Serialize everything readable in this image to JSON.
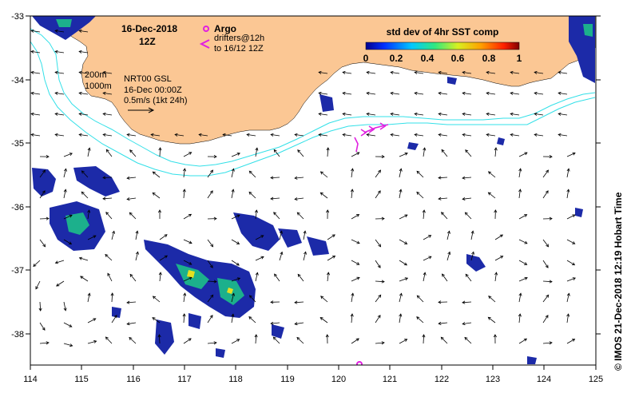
{
  "title": {
    "date": "16-Dec-2018",
    "time": "12Z"
  },
  "legend": {
    "argo_label": "Argo",
    "drifters_line1": "drifters@12h",
    "drifters_line2": "to 16/12 12Z",
    "isobath_200": "200m",
    "isobath_1000": "1000m",
    "currents_line1": "NRT00 GSL",
    "currents_line2": "16-Dec 00:00Z",
    "currents_line3": "0.5m/s (1kt 24h)"
  },
  "colorbar": {
    "title": "std dev of 4hr SST comp",
    "ticks": [
      "0",
      "0.2",
      "0.4",
      "0.6",
      "0.8",
      "1"
    ]
  },
  "axes": {
    "lon_ticks": [
      "114",
      "115",
      "116",
      "117",
      "118",
      "119",
      "120",
      "121",
      "122",
      "123",
      "124",
      "125"
    ],
    "lat_ticks": [
      "-33",
      "-34",
      "-35",
      "-36",
      "-37",
      "-38"
    ]
  },
  "credit": "©  IMOS 21-Dec-2018 12:19 Hobart Time",
  "colors": {
    "land": "#fbc794",
    "isobath": "#33e0e8",
    "argo": "#e020e0",
    "drifter": "#e020e0",
    "sst_low": "#1c2aa8",
    "sst_mid": "#1cb08c",
    "sst_high": "#e6e020"
  },
  "chart_data": {
    "type": "map",
    "region": "South-west Western Australia",
    "xlim": [
      114,
      125
    ],
    "ylim": [
      -38.5,
      -33
    ],
    "argo_floats": [
      {
        "lon": 117.7,
        "lat": -33.2
      },
      {
        "lon": 120.35,
        "lat": -38.48
      }
    ]
  }
}
